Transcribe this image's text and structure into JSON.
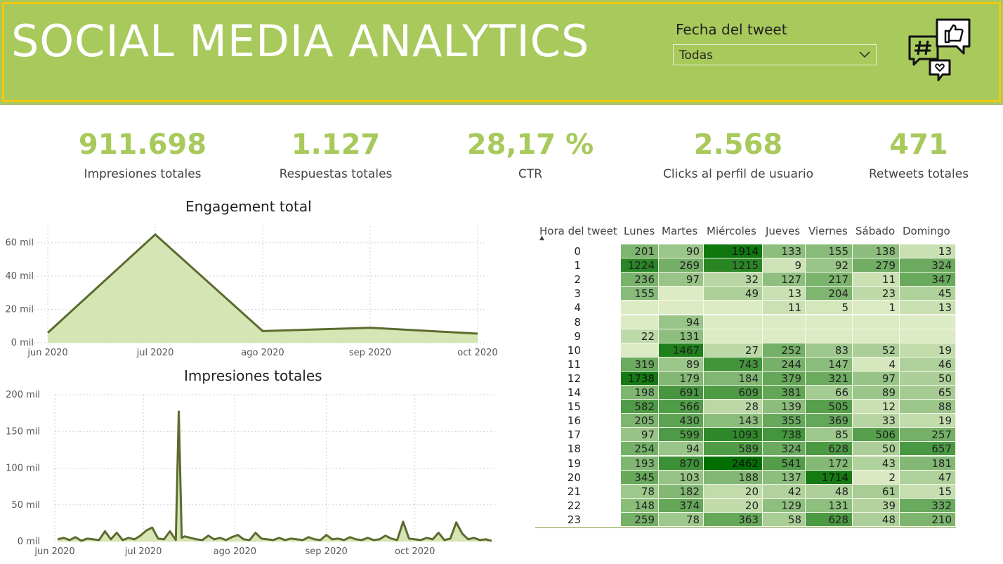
{
  "header": {
    "title": "SOCIAL MEDIA ANALYTICS",
    "filter_label": "Fecha del tweet",
    "filter_value": "Todas",
    "icons": [
      "hashtag-chat-icon",
      "thumbs-up-chat-icon",
      "heart-chat-icon"
    ]
  },
  "kpis": [
    {
      "value": "911.698",
      "label": "Impresiones totales"
    },
    {
      "value": "1.127",
      "label": "Respuestas totales"
    },
    {
      "value": "28,17 %",
      "label": "CTR"
    },
    {
      "value": "2.568",
      "label": "Clicks al perfil de usuario"
    },
    {
      "value": "471",
      "label": "Retweets totales"
    }
  ],
  "colors": {
    "accent": "#a8c95b",
    "line": "#5c6b2e",
    "area": "#d6e5b4",
    "border": "#f2c811"
  },
  "chart_data": [
    {
      "type": "area",
      "title": "Engagement total",
      "x": [
        "jun 2020",
        "jul 2020",
        "ago 2020",
        "sep 2020",
        "oct 2020"
      ],
      "y": [
        6000,
        65000,
        7000,
        9000,
        5500
      ],
      "y_ticks": [
        "0 mil",
        "20 mil",
        "40 mil",
        "60 mil"
      ],
      "ylim": [
        0,
        70000
      ],
      "grid": true
    },
    {
      "type": "area",
      "title": "Impresiones totales",
      "x_ticks": [
        "jun 2020",
        "jul 2020",
        "ago 2020",
        "sep 2020",
        "oct 2020"
      ],
      "y_ticks": [
        "0 mil",
        "50 mil",
        "100 mil",
        "150 mil",
        "200 mil"
      ],
      "ylim": [
        0,
        200000
      ],
      "x_range": [
        "2020-06-01",
        "2020-10-27"
      ],
      "dates": [
        "2020-06-02",
        "2020-06-04",
        "2020-06-06",
        "2020-06-08",
        "2020-06-10",
        "2020-06-12",
        "2020-06-14",
        "2020-06-16",
        "2020-06-18",
        "2020-06-20",
        "2020-06-22",
        "2020-06-24",
        "2020-06-26",
        "2020-06-28",
        "2020-06-30",
        "2020-07-02",
        "2020-07-04",
        "2020-07-06",
        "2020-07-08",
        "2020-07-10",
        "2020-07-12",
        "2020-07-13",
        "2020-07-14",
        "2020-07-15",
        "2020-07-17",
        "2020-07-19",
        "2020-07-21",
        "2020-07-23",
        "2020-07-25",
        "2020-07-27",
        "2020-07-29",
        "2020-07-31",
        "2020-08-02",
        "2020-08-04",
        "2020-08-06",
        "2020-08-08",
        "2020-08-10",
        "2020-08-12",
        "2020-08-14",
        "2020-08-16",
        "2020-08-18",
        "2020-08-20",
        "2020-08-22",
        "2020-08-24",
        "2020-08-26",
        "2020-08-28",
        "2020-08-30",
        "2020-09-01",
        "2020-09-03",
        "2020-09-05",
        "2020-09-07",
        "2020-09-09",
        "2020-09-11",
        "2020-09-13",
        "2020-09-15",
        "2020-09-17",
        "2020-09-19",
        "2020-09-21",
        "2020-09-23",
        "2020-09-25",
        "2020-09-27",
        "2020-09-29",
        "2020-10-01",
        "2020-10-03",
        "2020-10-05",
        "2020-10-07",
        "2020-10-09",
        "2020-10-11",
        "2020-10-13",
        "2020-10-15",
        "2020-10-17",
        "2020-10-19",
        "2020-10-21",
        "2020-10-23",
        "2020-10-25",
        "2020-10-27"
      ],
      "y": [
        3000,
        5000,
        2000,
        6000,
        1000,
        4000,
        3000,
        2000,
        14000,
        3000,
        12000,
        2000,
        5000,
        3000,
        8000,
        15000,
        19000,
        4000,
        3000,
        14000,
        2000,
        177000,
        5000,
        7000,
        5000,
        3000,
        2000,
        8000,
        3000,
        5000,
        2000,
        6000,
        9000,
        3000,
        2000,
        12000,
        4000,
        3000,
        2000,
        5000,
        2000,
        4000,
        3000,
        2000,
        6000,
        3000,
        2000,
        9000,
        3000,
        4000,
        2000,
        6000,
        3000,
        2000,
        5000,
        2000,
        3000,
        8000,
        4000,
        2000,
        27000,
        4000,
        3000,
        2000,
        5000,
        3000,
        12000,
        2000,
        4000,
        26000,
        11000,
        3000,
        5000,
        2000,
        3000,
        1000
      ],
      "grid": true
    }
  ],
  "matrix": {
    "row_header": "Hora del tweet",
    "columns": [
      "Lunes",
      "Martes",
      "Miércoles",
      "Jueves",
      "Viernes",
      "Sábado",
      "Domingo"
    ],
    "rows": [
      {
        "hour": "0",
        "values": [
          "201",
          "90",
          "1914",
          "133",
          "155",
          "138",
          "13"
        ]
      },
      {
        "hour": "1",
        "values": [
          "1224",
          "269",
          "1215",
          "9",
          "92",
          "279",
          "324"
        ]
      },
      {
        "hour": "2",
        "values": [
          "236",
          "97",
          "32",
          "127",
          "217",
          "11",
          "347"
        ]
      },
      {
        "hour": "3",
        "values": [
          "155",
          "",
          "49",
          "13",
          "204",
          "23",
          "45"
        ]
      },
      {
        "hour": "4",
        "values": [
          "",
          "",
          "",
          "11",
          "5",
          "1",
          "13"
        ]
      },
      {
        "hour": "8",
        "values": [
          "",
          "94",
          "",
          "",
          "",
          "",
          ""
        ]
      },
      {
        "hour": "9",
        "values": [
          "22",
          "131",
          "",
          "",
          "",
          "",
          ""
        ]
      },
      {
        "hour": "10",
        "values": [
          "",
          "1467",
          "27",
          "252",
          "83",
          "52",
          "19"
        ]
      },
      {
        "hour": "11",
        "values": [
          "319",
          "89",
          "743",
          "244",
          "147",
          "4",
          "46"
        ]
      },
      {
        "hour": "12",
        "values": [
          "1738",
          "179",
          "184",
          "379",
          "321",
          "97",
          "50"
        ]
      },
      {
        "hour": "14",
        "values": [
          "198",
          "691",
          "609",
          "381",
          "66",
          "89",
          "65"
        ]
      },
      {
        "hour": "15",
        "values": [
          "582",
          "566",
          "28",
          "139",
          "505",
          "12",
          "88"
        ]
      },
      {
        "hour": "16",
        "values": [
          "205",
          "430",
          "143",
          "355",
          "369",
          "33",
          "19"
        ]
      },
      {
        "hour": "17",
        "values": [
          "97",
          "599",
          "1093",
          "738",
          "85",
          "506",
          "257"
        ]
      },
      {
        "hour": "18",
        "values": [
          "254",
          "94",
          "589",
          "324",
          "628",
          "50",
          "657"
        ]
      },
      {
        "hour": "19",
        "values": [
          "193",
          "870",
          "2462",
          "541",
          "172",
          "43",
          "181"
        ]
      },
      {
        "hour": "20",
        "values": [
          "345",
          "103",
          "188",
          "137",
          "1714",
          "2",
          "47"
        ]
      },
      {
        "hour": "21",
        "values": [
          "78",
          "182",
          "20",
          "42",
          "48",
          "61",
          "15"
        ]
      },
      {
        "hour": "22",
        "values": [
          "148",
          "374",
          "20",
          "129",
          "131",
          "39",
          "332"
        ]
      },
      {
        "hour": "23",
        "values": [
          "259",
          "78",
          "363",
          "58",
          "628",
          "48",
          "210"
        ]
      }
    ]
  }
}
